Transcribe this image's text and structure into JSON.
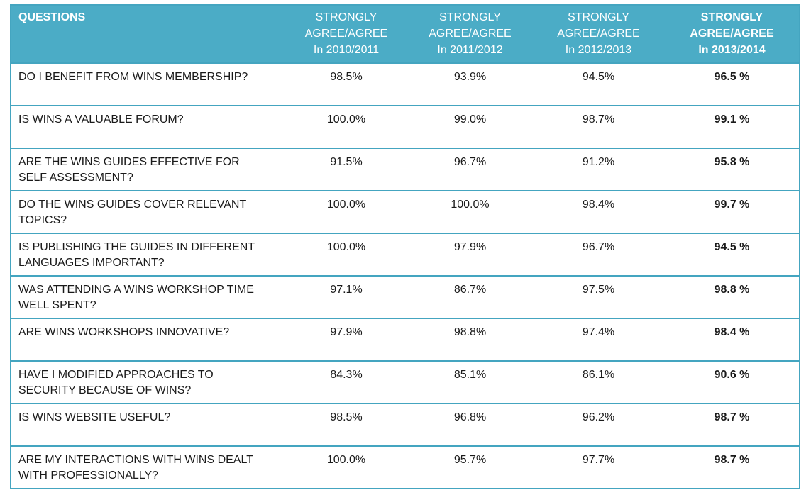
{
  "colors": {
    "header_bg": "#4BACC6",
    "header_text": "#FFFFFF",
    "border": "#44A5C0",
    "body_text": "#1A1A1A",
    "row_bg": "#FFFFFF"
  },
  "table": {
    "headers": [
      "QUESTIONS",
      "STRONGLY\nAGREE/AGREE\nIn 2010/2011",
      "STRONGLY\nAGREE/AGREE\nIn 2011/2012",
      "STRONGLY\nAGREE/AGREE\nIn 2012/2013",
      "STRONGLY\nAGREE/AGREE\nIn 2013/2014"
    ],
    "rows": [
      {
        "question": "DO I BENEFIT FROM WINS MEMBERSHIP?",
        "values": [
          "98.5%",
          "93.9%",
          "94.5%",
          "96.5 %"
        ]
      },
      {
        "question": "IS WINS A VALUABLE FORUM?",
        "values": [
          "100.0%",
          "99.0%",
          "98.7%",
          "99.1 %"
        ]
      },
      {
        "question": "ARE THE WINS GUIDES EFFECTIVE FOR SELF ASSESSMENT?",
        "values": [
          "91.5%",
          "96.7%",
          "91.2%",
          "95.8 %"
        ]
      },
      {
        "question": "DO THE WINS GUIDES COVER RELEVANT TOPICS?",
        "values": [
          "100.0%",
          "100.0%",
          "98.4%",
          "99.7 %"
        ]
      },
      {
        "question": "IS PUBLISHING THE GUIDES IN DIFFERENT LANGUAGES IMPORTANT?",
        "values": [
          "100.0%",
          "97.9%",
          "96.7%",
          "94.5 %"
        ]
      },
      {
        "question": "WAS ATTENDING A WINS WORKSHOP TIME WELL SPENT?",
        "values": [
          "97.1%",
          "86.7%",
          "97.5%",
          "98.8 %"
        ]
      },
      {
        "question": "ARE WINS WORKSHOPS INNOVATIVE?",
        "values": [
          "97.9%",
          "98.8%",
          "97.4%",
          "98.4 %"
        ]
      },
      {
        "question": "HAVE I MODIFIED APPROACHES TO SECURITY BECAUSE OF WINS?",
        "values": [
          "84.3%",
          "85.1%",
          "86.1%",
          "90.6 %"
        ]
      },
      {
        "question": "IS WINS WEBSITE USEFUL?",
        "values": [
          "98.5%",
          "96.8%",
          "96.2%",
          "98.7 %"
        ]
      },
      {
        "question": "ARE MY INTERACTIONS WITH WINS DEALT WITH PROFESSIONALLY?",
        "values": [
          "100.0%",
          "95.7%",
          "97.7%",
          "98.7 %"
        ]
      }
    ]
  },
  "chart_data": {
    "type": "table",
    "title": "",
    "categories": [
      "DO I BENEFIT FROM WINS MEMBERSHIP?",
      "IS WINS A VALUABLE FORUM?",
      "ARE THE WINS GUIDES EFFECTIVE FOR SELF ASSESSMENT?",
      "DO THE WINS GUIDES COVER RELEVANT TOPICS?",
      "IS PUBLISHING THE GUIDES IN DIFFERENT LANGUAGES IMPORTANT?",
      "WAS ATTENDING A WINS WORKSHOP TIME WELL SPENT?",
      "ARE WINS WORKSHOPS INNOVATIVE?",
      "HAVE I MODIFIED APPROACHES TO SECURITY BECAUSE OF WINS?",
      "IS WINS WEBSITE USEFUL?",
      "ARE MY INTERACTIONS WITH WINS DEALT WITH PROFESSIONALLY?"
    ],
    "series": [
      {
        "name": "STRONGLY AGREE/AGREE In 2010/2011",
        "values": [
          98.5,
          100.0,
          91.5,
          100.0,
          100.0,
          97.1,
          97.9,
          84.3,
          98.5,
          100.0
        ]
      },
      {
        "name": "STRONGLY AGREE/AGREE In 2011/2012",
        "values": [
          93.9,
          99.0,
          96.7,
          100.0,
          97.9,
          86.7,
          98.8,
          85.1,
          96.8,
          95.7
        ]
      },
      {
        "name": "STRONGLY AGREE/AGREE In 2012/2013",
        "values": [
          94.5,
          98.7,
          91.2,
          98.4,
          96.7,
          97.5,
          97.4,
          86.1,
          96.2,
          97.7
        ]
      },
      {
        "name": "STRONGLY AGREE/AGREE In 2013/2014",
        "values": [
          96.5,
          99.1,
          95.8,
          99.7,
          94.5,
          98.8,
          98.4,
          90.6,
          98.7,
          98.7
        ]
      }
    ],
    "unit": "%"
  }
}
